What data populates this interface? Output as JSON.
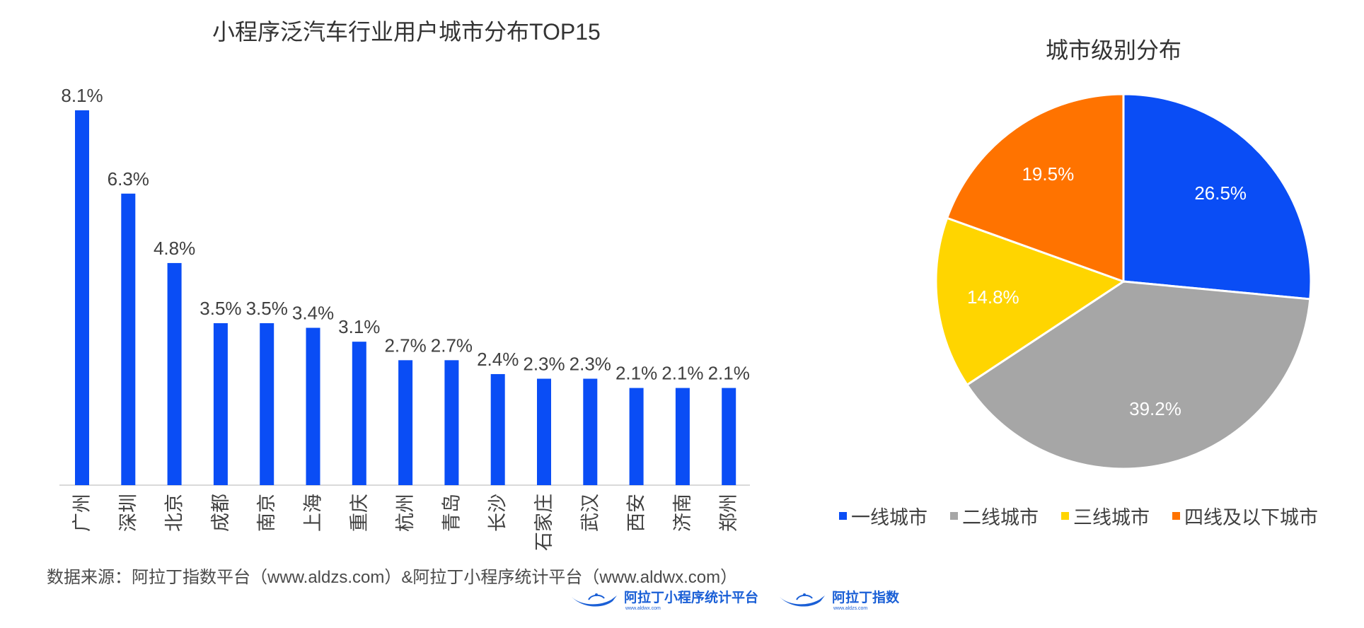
{
  "chart_data": [
    {
      "type": "bar",
      "title": "小程序泛汽车行业用户城市分布TOP15",
      "categories": [
        "广州",
        "深圳",
        "北京",
        "成都",
        "南京",
        "上海",
        "重庆",
        "杭州",
        "青岛",
        "长沙",
        "石家庄",
        "武汉",
        "西安",
        "济南",
        "郑州"
      ],
      "values": [
        8.1,
        6.3,
        4.8,
        3.5,
        3.5,
        3.4,
        3.1,
        2.7,
        2.7,
        2.4,
        2.3,
        2.3,
        2.1,
        2.1,
        2.1
      ],
      "value_labels": [
        "8.1%",
        "6.3%",
        "4.8%",
        "3.5%",
        "3.5%",
        "3.4%",
        "3.1%",
        "2.7%",
        "2.7%",
        "2.4%",
        "2.3%",
        "2.3%",
        "2.1%",
        "2.1%",
        "2.1%"
      ],
      "unit": "%",
      "ylim": [
        0,
        8.1
      ],
      "grid": false,
      "color": "#0a4df5"
    },
    {
      "type": "pie",
      "title": "城市级别分布",
      "labels": [
        "一线城市",
        "二线城市",
        "三线城市",
        "四线及以下城市"
      ],
      "values": [
        26.5,
        39.2,
        14.8,
        19.5
      ],
      "value_labels": [
        "26.5%",
        "39.2%",
        "14.8%",
        "19.5%"
      ],
      "colors": [
        "#0a4df5",
        "#a6a6a6",
        "#ffd500",
        "#ff7300"
      ],
      "legend_position": "bottom"
    }
  ],
  "footer": {
    "source": "数据来源：阿拉丁指数平台（www.aldzs.com）&阿拉丁小程序统计平台（www.aldwx.com）",
    "logo1_name": "阿拉丁小程序统计平台",
    "logo1_url": "www.aldwx.com",
    "logo2_name": "阿拉丁指数",
    "logo2_url": "www.aldzs.com"
  }
}
